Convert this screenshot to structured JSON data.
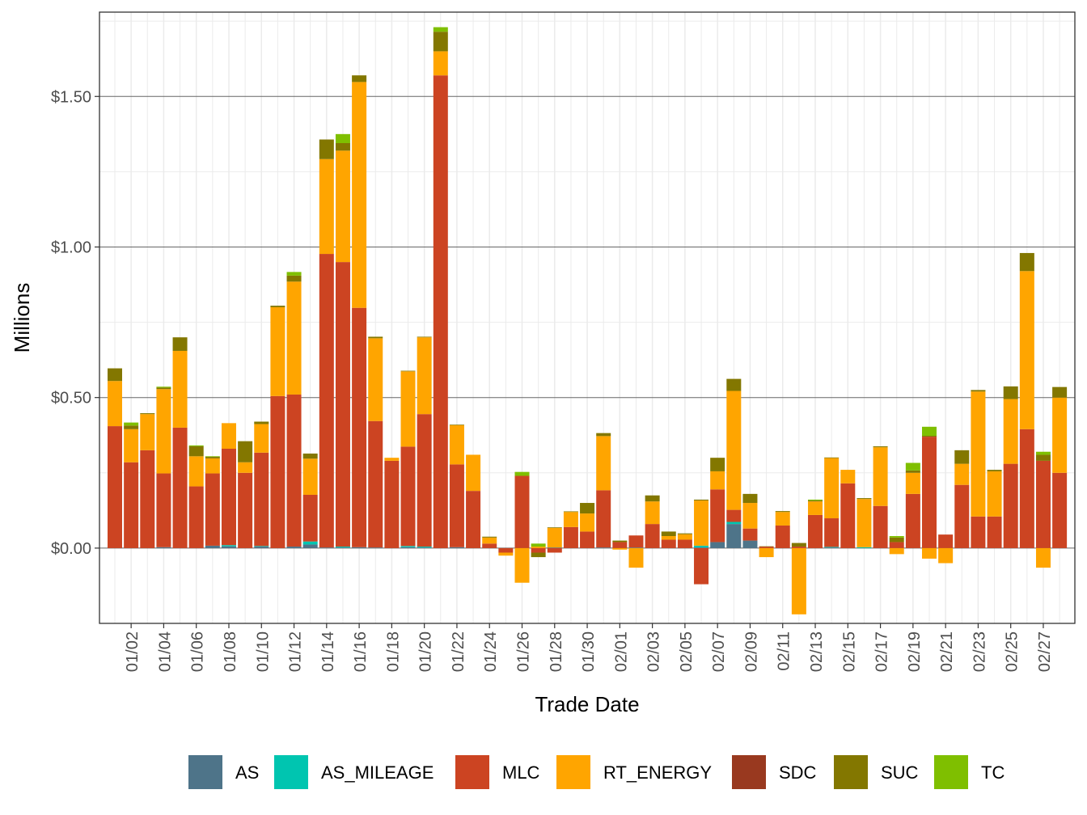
{
  "chart_data": {
    "type": "bar",
    "stacked": true,
    "xlabel": "Trade Date",
    "ylabel": "Millions",
    "ylim": [
      -0.25,
      1.78
    ],
    "y_ticks": [
      0,
      0.5,
      1.0,
      1.5
    ],
    "y_tick_labels": [
      "$0.00",
      "$0.50",
      "$1.00",
      "$1.50"
    ],
    "x_tick_labels": [
      "01/02",
      "01/04",
      "01/06",
      "01/08",
      "01/10",
      "01/12",
      "01/14",
      "01/16",
      "01/18",
      "01/20",
      "01/22",
      "01/24",
      "01/26",
      "01/28",
      "01/30",
      "02/01",
      "02/03",
      "02/05",
      "02/07",
      "02/09",
      "02/11",
      "02/13",
      "02/15",
      "02/17",
      "02/19",
      "02/21",
      "02/23",
      "02/25",
      "02/27"
    ],
    "x_tick_every": 2,
    "x_tick_offset": 1,
    "grid": true,
    "legend_position": "bottom",
    "categories": [
      "01/01",
      "01/02",
      "01/03",
      "01/04",
      "01/05",
      "01/06",
      "01/07",
      "01/08",
      "01/09",
      "01/10",
      "01/11",
      "01/12",
      "01/13",
      "01/14",
      "01/15",
      "01/16",
      "01/17",
      "01/18",
      "01/19",
      "01/20",
      "01/21",
      "01/22",
      "01/23",
      "01/24",
      "01/25",
      "01/26",
      "01/27",
      "01/28",
      "01/29",
      "01/30",
      "01/31",
      "02/01",
      "02/02",
      "02/03",
      "02/04",
      "02/05",
      "02/06",
      "02/07",
      "02/08",
      "02/09",
      "02/10",
      "02/11",
      "02/12",
      "02/13",
      "02/14",
      "02/15",
      "02/16",
      "02/17",
      "02/18",
      "02/19",
      "02/20",
      "02/21",
      "02/22",
      "02/23",
      "02/24",
      "02/25",
      "02/26",
      "02/27",
      "02/28"
    ],
    "series": [
      {
        "name": "AS",
        "color": "#4e7489",
        "values": [
          0,
          0,
          0,
          0.003,
          0,
          0,
          0.008,
          0.006,
          0,
          0.005,
          0,
          0.005,
          0.012,
          0.002,
          0.002,
          0.003,
          0.002,
          0,
          0.003,
          0.002,
          0,
          0.003,
          0,
          0,
          0,
          0,
          0,
          0.002,
          0,
          0,
          0.002,
          0,
          0.002,
          0,
          0,
          0,
          0.002,
          0.02,
          0.08,
          0.025,
          0,
          0,
          0,
          0,
          0.002,
          0,
          0,
          0,
          0,
          0,
          0,
          0,
          0,
          0,
          0,
          0,
          0,
          0,
          0
        ]
      },
      {
        "name": "AS_MILEAGE",
        "color": "#00c5b0",
        "values": [
          0,
          0,
          0,
          0,
          0,
          0,
          0,
          0.004,
          0,
          0.002,
          0,
          0,
          0.01,
          0,
          0.003,
          0,
          0,
          0,
          0.004,
          0.003,
          0,
          0,
          0,
          0,
          0,
          0,
          0,
          0,
          0,
          0,
          0,
          0,
          0,
          0,
          0,
          0,
          0.006,
          0,
          0.007,
          0,
          0,
          0,
          0,
          0,
          0.002,
          0,
          0.003,
          0,
          0,
          0,
          0,
          0,
          0,
          0,
          0,
          0,
          0,
          0,
          0
        ]
      },
      {
        "name": "MLC",
        "color": "#cc4422",
        "values": [
          0.405,
          0.285,
          0.325,
          0.245,
          0.4,
          0.205,
          0.24,
          0.32,
          0.25,
          0.31,
          0.505,
          0.505,
          0.155,
          0.975,
          0.945,
          0.795,
          0.42,
          0.29,
          0.33,
          0.44,
          1.57,
          0.275,
          0.19,
          0.015,
          -0.015,
          0.24,
          -0.015,
          -0.015,
          0.07,
          0.055,
          0.19,
          0.02,
          0.04,
          0.08,
          0.028,
          0.028,
          -0.12,
          0.175,
          0.04,
          0.04,
          0.005,
          0.075,
          0.005,
          0.11,
          0.095,
          0.215,
          0,
          0.14,
          0.02,
          0.18,
          0.37,
          0.045,
          0.21,
          0.105,
          0.105,
          0.28,
          0.395,
          0.29,
          0.25
        ]
      },
      {
        "name": "RT_ENERGY",
        "color": "#ffa500",
        "values": [
          0.15,
          0.11,
          0.12,
          0.28,
          0.255,
          0.1,
          0.05,
          0.085,
          0.035,
          0.095,
          0.295,
          0.375,
          0.12,
          0.315,
          0.37,
          0.75,
          0.275,
          0.01,
          0.25,
          0.255,
          0.08,
          0.13,
          0.12,
          0.02,
          -0.01,
          -0.115,
          0.005,
          0.065,
          0.05,
          0.06,
          0.18,
          -0.005,
          -0.065,
          0.075,
          0.012,
          0.018,
          0.15,
          0.06,
          0.395,
          0.085,
          -0.03,
          0.045,
          -0.22,
          0.045,
          0.2,
          0.045,
          0.16,
          0.195,
          -0.02,
          0.07,
          -0.035,
          -0.05,
          0.07,
          0.415,
          0.15,
          0.215,
          0.525,
          -0.065,
          0.25
        ]
      },
      {
        "name": "SDC",
        "color": "#99391f",
        "values": [
          0,
          0,
          0,
          0,
          0,
          0,
          0,
          0,
          0,
          0,
          0,
          0,
          0,
          0,
          0,
          0,
          0,
          0,
          0,
          0,
          0,
          0,
          0,
          0,
          0,
          0,
          0,
          0,
          0,
          0,
          0,
          0,
          0,
          0,
          0,
          0,
          0,
          0,
          0,
          0,
          0,
          0,
          0,
          0,
          0,
          0,
          0,
          0,
          0,
          0,
          0,
          0,
          0,
          0,
          0,
          0,
          0,
          0,
          0
        ]
      },
      {
        "name": "SUC",
        "color": "#837700",
        "values": [
          0.042,
          0.012,
          0.003,
          0.005,
          0.045,
          0.033,
          0.005,
          0,
          0.07,
          0.008,
          0.005,
          0.02,
          0.017,
          0.065,
          0.025,
          0.022,
          0.005,
          0,
          0.002,
          0.002,
          0.065,
          0.002,
          0,
          0.003,
          0,
          0,
          -0.015,
          0.002,
          0.002,
          0.035,
          0.01,
          0.005,
          0,
          0.02,
          0.015,
          0.003,
          0.003,
          0.045,
          0.04,
          0.03,
          0.001,
          0.003,
          0.012,
          0.003,
          0.002,
          0,
          0.003,
          0.003,
          0.015,
          0.008,
          0.003,
          0,
          0.045,
          0.005,
          0.005,
          0.042,
          0.06,
          0.02,
          0.035
        ]
      },
      {
        "name": "TC",
        "color": "#7fbf00",
        "values": [
          0,
          0.01,
          0,
          0.003,
          0,
          0.003,
          0.002,
          0,
          0,
          0,
          0,
          0.012,
          0,
          0,
          0.03,
          0,
          0,
          0,
          0,
          0,
          0.015,
          0,
          0,
          0,
          0,
          0.013,
          0.01,
          0,
          0,
          0,
          0,
          0,
          0,
          0,
          0,
          0,
          0,
          0,
          0,
          0,
          0,
          0,
          0,
          0.003,
          0,
          0,
          0,
          0,
          0.005,
          0.025,
          0.03,
          0,
          0,
          0,
          0,
          0,
          0,
          0.01,
          0
        ]
      }
    ]
  }
}
